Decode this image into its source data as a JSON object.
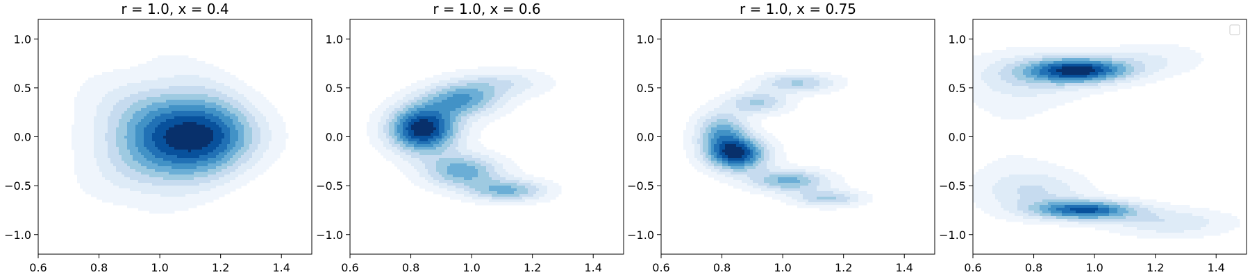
{
  "chart_data": [
    {
      "type": "heatmap",
      "title": "r = 1.0, x = 0.4",
      "xlim": [
        0.6,
        1.5
      ],
      "ylim": [
        -1.2,
        1.2
      ],
      "xticks": [
        0.6,
        0.8,
        1.0,
        1.2,
        1.4
      ],
      "xtick_labels": [
        "0.6",
        "0.8",
        "1.0",
        "1.2",
        "1.4"
      ],
      "yticks": [
        1.0,
        0.5,
        0.0,
        -0.5,
        -1.0
      ],
      "ytick_labels": [
        "1.0",
        "0.5",
        "0.0",
        "−0.5",
        "−1.0"
      ],
      "grid": false,
      "legend": false,
      "colormap": "Blues",
      "levels": 10,
      "density_components": [
        {
          "cx": 1.05,
          "cy": 0.0,
          "sx": 0.15,
          "sy": 0.3,
          "weight": 1.0,
          "bend": -1.4
        },
        {
          "cx": 1.2,
          "cy": 0.05,
          "sx": 0.1,
          "sy": 0.45,
          "weight": 0.35,
          "bend": -1.0
        }
      ]
    },
    {
      "type": "heatmap",
      "title": "r = 1.0, x = 0.6",
      "xlim": [
        0.6,
        1.5
      ],
      "ylim": [
        -1.2,
        1.2
      ],
      "xticks": [
        0.6,
        0.8,
        1.0,
        1.2,
        1.4
      ],
      "xtick_labels": [
        "0.6",
        "0.8",
        "1.0",
        "1.2",
        "1.4"
      ],
      "yticks": [
        1.0,
        0.5,
        0.0,
        -0.5,
        -1.0
      ],
      "ytick_labels": [
        "1.0",
        "0.5",
        "0.0",
        "−0.5",
        "−1.0"
      ],
      "grid": false,
      "legend": false,
      "colormap": "Blues",
      "levels": 10,
      "density_components": [
        {
          "cx": 0.84,
          "cy": 0.08,
          "sx": 0.08,
          "sy": 0.17,
          "weight": 1.0,
          "bend": 0
        },
        {
          "cx": 0.97,
          "cy": 0.38,
          "sx": 0.09,
          "sy": 0.12,
          "weight": 0.55,
          "bend": 0
        },
        {
          "cx": 1.1,
          "cy": 0.55,
          "sx": 0.11,
          "sy": 0.1,
          "weight": 0.25,
          "bend": 0
        },
        {
          "cx": 0.97,
          "cy": -0.35,
          "sx": 0.09,
          "sy": 0.12,
          "weight": 0.55,
          "bend": 0
        },
        {
          "cx": 1.12,
          "cy": -0.55,
          "sx": 0.09,
          "sy": 0.08,
          "weight": 0.5,
          "bend": 0
        }
      ]
    },
    {
      "type": "heatmap",
      "title": "r = 1.0, x = 0.75",
      "xlim": [
        0.6,
        1.5
      ],
      "ylim": [
        -1.2,
        1.2
      ],
      "xticks": [
        0.6,
        0.8,
        1.0,
        1.2,
        1.4
      ],
      "xtick_labels": [
        "0.6",
        "0.8",
        "1.0",
        "1.2",
        "1.4"
      ],
      "yticks": [
        1.0,
        0.5,
        0.0,
        -0.5,
        -1.0
      ],
      "ytick_labels": [
        "1.0",
        "0.5",
        "0.0",
        "−0.5",
        "−1.0"
      ],
      "grid": false,
      "legend": false,
      "colormap": "Blues",
      "levels": 10,
      "density_components": [
        {
          "cx": 0.85,
          "cy": -0.18,
          "sx": 0.07,
          "sy": 0.12,
          "weight": 1.0,
          "bend": 0
        },
        {
          "cx": 0.8,
          "cy": 0.05,
          "sx": 0.06,
          "sy": 0.15,
          "weight": 0.6,
          "bend": 0
        },
        {
          "cx": 0.92,
          "cy": 0.35,
          "sx": 0.07,
          "sy": 0.08,
          "weight": 0.45,
          "bend": 0
        },
        {
          "cx": 1.05,
          "cy": 0.55,
          "sx": 0.09,
          "sy": 0.07,
          "weight": 0.45,
          "bend": 0
        },
        {
          "cx": 1.02,
          "cy": -0.45,
          "sx": 0.09,
          "sy": 0.08,
          "weight": 0.6,
          "bend": 0
        },
        {
          "cx": 1.15,
          "cy": -0.63,
          "sx": 0.08,
          "sy": 0.06,
          "weight": 0.45,
          "bend": 0
        }
      ]
    },
    {
      "type": "heatmap",
      "title": "",
      "xlim": [
        0.6,
        1.5
      ],
      "ylim": [
        -1.2,
        1.2
      ],
      "xticks": [
        0.6,
        0.8,
        1.0,
        1.2,
        1.4
      ],
      "xtick_labels": [
        "0.6",
        "0.8",
        "1.0",
        "1.2",
        "1.4"
      ],
      "yticks": [
        1.0,
        0.5,
        0.0,
        -0.5,
        -1.0
      ],
      "ytick_labels": [
        "1.0",
        "0.5",
        "0.0",
        "−0.5",
        "−1.0"
      ],
      "grid": false,
      "legend": true,
      "legend_placement": "top-right",
      "legend_entries": [],
      "colormap": "Blues",
      "levels": 10,
      "density_components": [
        {
          "cx": 0.95,
          "cy": 0.68,
          "sx": 0.12,
          "sy": 0.09,
          "weight": 1.0,
          "bend": 0
        },
        {
          "cx": 0.78,
          "cy": 0.6,
          "sx": 0.15,
          "sy": 0.18,
          "weight": 0.25,
          "bend": 0
        },
        {
          "cx": 1.2,
          "cy": 0.8,
          "sx": 0.12,
          "sy": 0.12,
          "weight": 0.18,
          "bend": 0
        },
        {
          "cx": 0.97,
          "cy": -0.75,
          "sx": 0.12,
          "sy": 0.07,
          "weight": 0.9,
          "bend": 0
        },
        {
          "cx": 0.8,
          "cy": -0.55,
          "sx": 0.12,
          "sy": 0.15,
          "weight": 0.3,
          "bend": 0
        },
        {
          "cx": 1.25,
          "cy": -0.88,
          "sx": 0.14,
          "sy": 0.1,
          "weight": 0.3,
          "bend": 0
        },
        {
          "cx": 0.72,
          "cy": 0.0,
          "sx": 0.12,
          "sy": 0.55,
          "weight": 0.07,
          "bend": 0
        }
      ]
    }
  ],
  "colors": {
    "levels": [
      "#eff5fc",
      "#deebf7",
      "#c6dbef",
      "#9ecae1",
      "#6baed6",
      "#4292c6",
      "#2171b5",
      "#08519c",
      "#08306b"
    ]
  }
}
